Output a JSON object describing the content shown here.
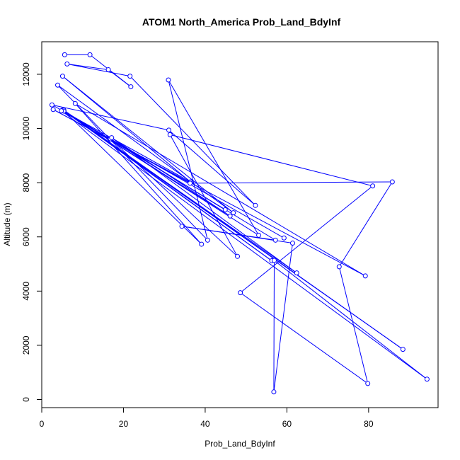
{
  "chart_data": {
    "type": "line",
    "title": "ATOM1 North_America Prob_Land_BdyInf",
    "xlabel": "Prob_Land_BdyInf",
    "ylabel": "Altitude (m)",
    "xlim": [
      0,
      97
    ],
    "ylim": [
      -300,
      13200
    ],
    "xticks": [
      0,
      20,
      40,
      60,
      80
    ],
    "yticks": [
      0,
      2000,
      4000,
      6000,
      8000,
      10000,
      12000
    ],
    "grid": false,
    "line_color": "#0000ff",
    "marker": "open-circle",
    "series": [
      {
        "points": [
          [
            5.6,
            12720
          ],
          [
            11.8,
            12720
          ],
          [
            21.8,
            11540
          ],
          [
            16.3,
            12170
          ],
          [
            6.2,
            12380
          ],
          [
            21.6,
            11930
          ],
          [
            52.3,
            7160
          ],
          [
            31.1,
            9940
          ],
          [
            2.5,
            10870
          ],
          [
            36.4,
            8030
          ],
          [
            5.1,
            11930
          ],
          [
            46.9,
            6890
          ],
          [
            3.9,
            11600
          ],
          [
            40.6,
            5880
          ],
          [
            31.0,
            11790
          ],
          [
            53.1,
            6060
          ],
          [
            5.4,
            10650
          ],
          [
            39.1,
            5730
          ],
          [
            8.2,
            10920
          ],
          [
            79.2,
            4560
          ],
          [
            2.8,
            10700
          ],
          [
            36.3,
            7980
          ],
          [
            85.8,
            8030
          ],
          [
            72.8,
            4900
          ],
          [
            79.8,
            590
          ],
          [
            48.6,
            3940
          ],
          [
            81.0,
            7880
          ],
          [
            31.4,
            9770
          ],
          [
            47.9,
            5280
          ],
          [
            16.8,
            9620
          ],
          [
            44.9,
            7000
          ],
          [
            5.1,
            10680
          ],
          [
            62.4,
            4670
          ],
          [
            17.1,
            9660
          ],
          [
            46.1,
            6770
          ],
          [
            5.4,
            10650
          ],
          [
            56.3,
            5120
          ],
          [
            5.4,
            10680
          ],
          [
            88.4,
            1850
          ],
          [
            5.4,
            10640
          ],
          [
            57.2,
            5880
          ],
          [
            34.3,
            6390
          ],
          [
            61.4,
            5770
          ],
          [
            56.8,
            280
          ],
          [
            56.9,
            5130
          ],
          [
            94.3,
            750
          ],
          [
            4.8,
            10650
          ],
          [
            59.3,
            5960
          ]
        ]
      }
    ]
  }
}
